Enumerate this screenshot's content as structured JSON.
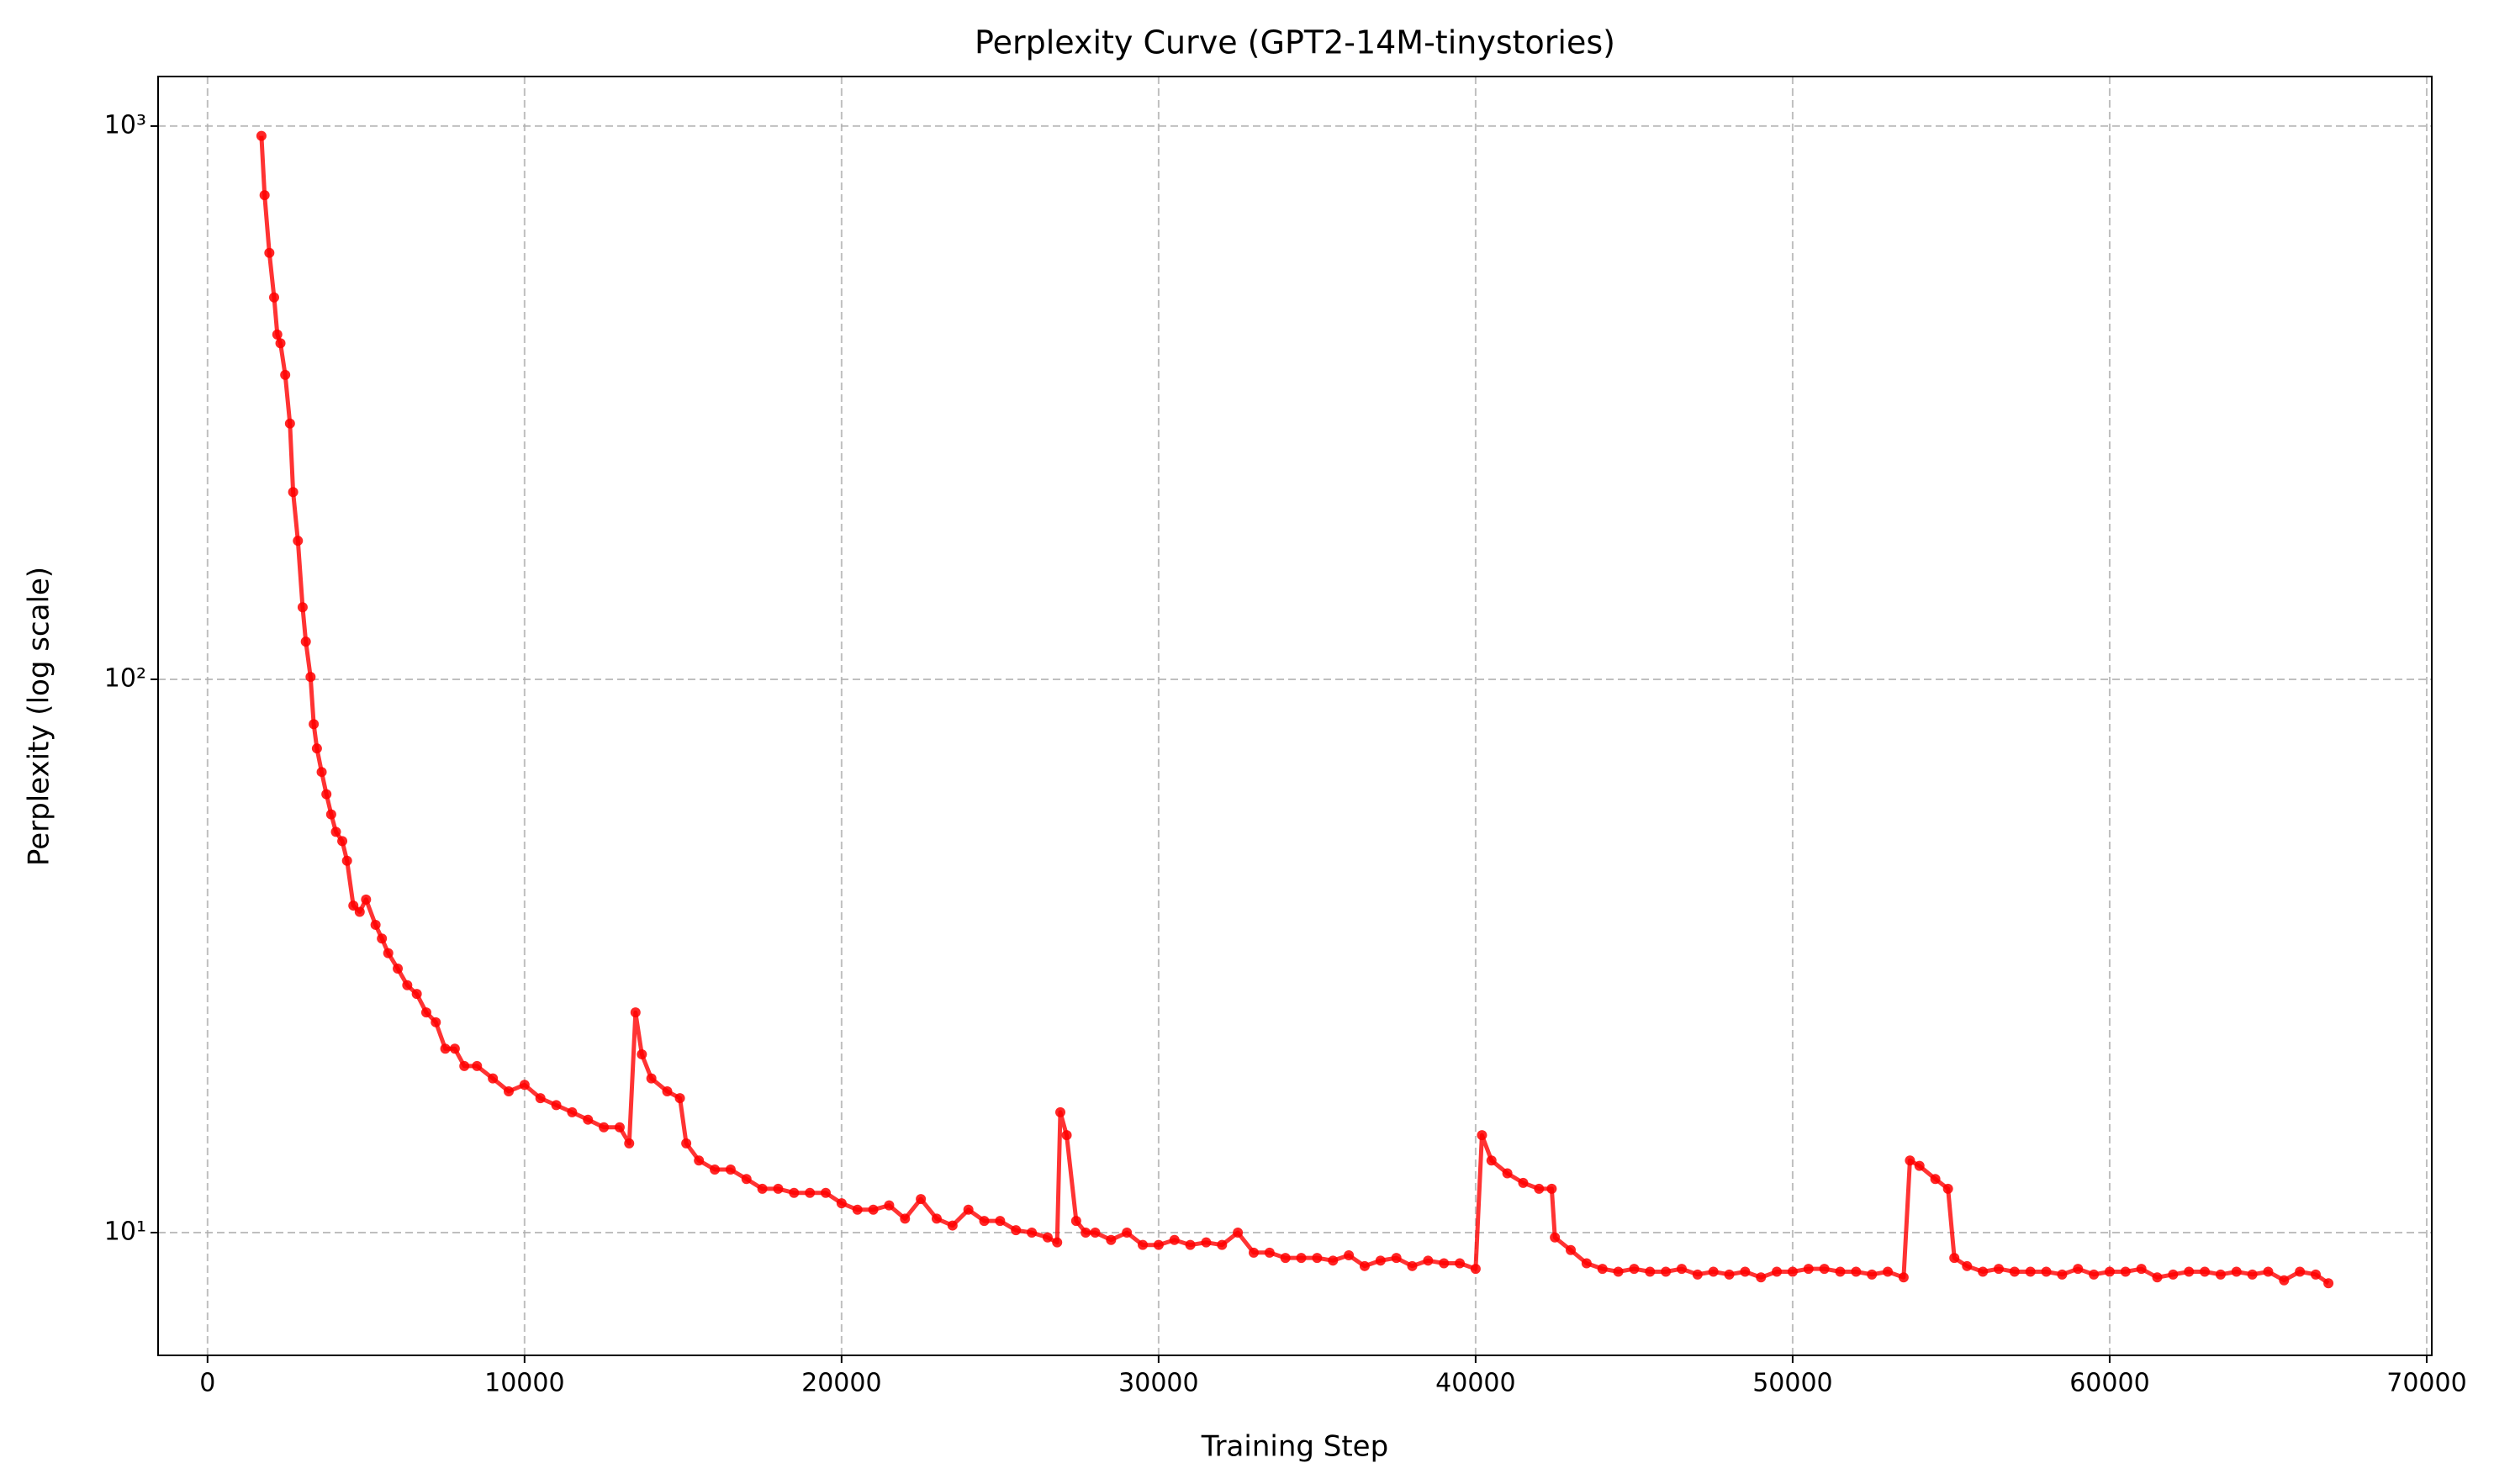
{
  "chart_data": {
    "type": "line",
    "title": "Perplexity Curve (GPT2-14M-tinystories)",
    "x_label": "Training Step",
    "y_label": "Perplexity (log scale)",
    "log_y": true,
    "grid": true,
    "color": "#ff0000",
    "xlim": [
      -1560,
      70160
    ],
    "ylim": [
      6,
      1229
    ],
    "xticks": [
      0,
      10000,
      20000,
      30000,
      40000,
      50000,
      60000,
      70000
    ],
    "yticks": [
      {
        "value": 10,
        "label": "10¹"
      },
      {
        "value": 100,
        "label": "10²"
      },
      {
        "value": 1000,
        "label": "10³"
      }
    ],
    "x": [
      1700,
      1800,
      1950,
      2100,
      2200,
      2300,
      2450,
      2600,
      2700,
      2850,
      3000,
      3100,
      3250,
      3350,
      3450,
      3600,
      3750,
      3900,
      4050,
      4250,
      4400,
      4600,
      4800,
      5000,
      5300,
      5500,
      5700,
      6000,
      6300,
      6600,
      6900,
      7200,
      7500,
      7800,
      8100,
      8500,
      9000,
      9500,
      10000,
      10500,
      11000,
      11500,
      12000,
      12500,
      13000,
      13300,
      13500,
      13700,
      14000,
      14500,
      14900,
      15100,
      15500,
      16000,
      16500,
      17000,
      17500,
      18000,
      18500,
      19000,
      19500,
      20000,
      20500,
      21000,
      21500,
      22000,
      22500,
      23000,
      23500,
      24000,
      24500,
      25000,
      25500,
      26000,
      26500,
      26800,
      26900,
      27100,
      27400,
      27700,
      28000,
      28500,
      29000,
      29500,
      30000,
      30500,
      31000,
      31500,
      32000,
      32500,
      33000,
      33500,
      34000,
      34500,
      35000,
      35500,
      36000,
      36500,
      37000,
      37500,
      38000,
      38500,
      39000,
      39500,
      40000,
      40200,
      40500,
      41000,
      41500,
      42000,
      42400,
      42500,
      43000,
      43500,
      44000,
      44500,
      45000,
      45500,
      46000,
      46500,
      47000,
      47500,
      48000,
      48500,
      49000,
      49500,
      50000,
      50500,
      51000,
      51500,
      52000,
      52500,
      53000,
      53500,
      53700,
      54000,
      54500,
      54900,
      55100,
      55500,
      56000,
      56500,
      57000,
      57500,
      58000,
      58500,
      59000,
      59500,
      60000,
      60500,
      61000,
      61500,
      62000,
      62500,
      63000,
      63500,
      64000,
      64500,
      65000,
      65500,
      66000,
      66500,
      66900
    ],
    "values": [
      960,
      750,
      590,
      490,
      420,
      405,
      355,
      290,
      218,
      178,
      135,
      117,
      101,
      83,
      75,
      68,
      62,
      57,
      53,
      51,
      47,
      39,
      38,
      40,
      36,
      34,
      32,
      30,
      28,
      27,
      25,
      24,
      21.5,
      21.5,
      20,
      20,
      19,
      18,
      18.5,
      17.5,
      17,
      16.5,
      16,
      15.5,
      15.5,
      14.5,
      25,
      21,
      19,
      18,
      17.5,
      14.5,
      13.5,
      13,
      13,
      12.5,
      12,
      12,
      11.8,
      11.8,
      11.8,
      11.3,
      11,
      11,
      11.2,
      10.6,
      11.5,
      10.6,
      10.3,
      11,
      10.5,
      10.5,
      10.1,
      10,
      9.8,
      9.6,
      16.5,
      15,
      10.5,
      10,
      10,
      9.7,
      10,
      9.5,
      9.5,
      9.7,
      9.5,
      9.6,
      9.5,
      10,
      9.2,
      9.2,
      9,
      9,
      9,
      8.9,
      9.1,
      8.7,
      8.9,
      9,
      8.7,
      8.9,
      8.8,
      8.8,
      8.6,
      15,
      13.5,
      12.8,
      12.3,
      12,
      12,
      9.8,
      9.3,
      8.8,
      8.6,
      8.5,
      8.6,
      8.5,
      8.5,
      8.6,
      8.4,
      8.5,
      8.4,
      8.5,
      8.3,
      8.5,
      8.5,
      8.6,
      8.6,
      8.5,
      8.5,
      8.4,
      8.5,
      8.3,
      13.5,
      13.2,
      12.5,
      12,
      9,
      8.7,
      8.5,
      8.6,
      8.5,
      8.5,
      8.5,
      8.4,
      8.6,
      8.4,
      8.5,
      8.5,
      8.6,
      8.3,
      8.4,
      8.5,
      8.5,
      8.4,
      8.5,
      8.4,
      8.5,
      8.2,
      8.5,
      8.4,
      8.1
    ]
  }
}
